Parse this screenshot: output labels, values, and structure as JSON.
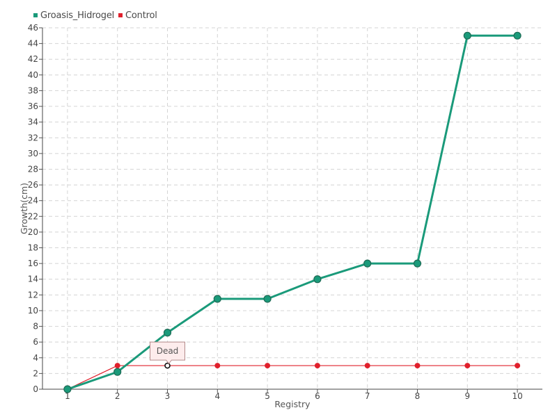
{
  "chart_data": {
    "type": "line",
    "xlabel": "Registry",
    "ylabel": "Growth(cm)",
    "x": [
      1,
      2,
      3,
      4,
      5,
      6,
      7,
      8,
      9,
      10
    ],
    "xlim": [
      0.5,
      10.5
    ],
    "ylim": [
      0,
      46
    ],
    "yticks": [
      0,
      2,
      4,
      6,
      8,
      10,
      12,
      14,
      16,
      18,
      20,
      22,
      24,
      26,
      28,
      30,
      32,
      34,
      36,
      38,
      40,
      42,
      44,
      46
    ],
    "xticks": [
      "1",
      "2",
      "3",
      "4",
      "5",
      "6",
      "7",
      "8",
      "9",
      "10"
    ],
    "grid": true,
    "legend_position": "top-left",
    "series": [
      {
        "name": "Groasis_Hidrogel",
        "color": "#1a9a7a",
        "values": [
          0,
          2.2,
          7.2,
          11.5,
          11.5,
          14,
          16,
          16,
          45,
          45
        ]
      },
      {
        "name": "Control",
        "color": "#e0202c",
        "values": [
          0,
          3,
          3,
          3,
          3,
          3,
          3,
          3,
          3,
          3
        ]
      }
    ],
    "annotations": [
      {
        "text": "Dead",
        "series": "Control",
        "x": 3,
        "y": 3
      }
    ]
  }
}
